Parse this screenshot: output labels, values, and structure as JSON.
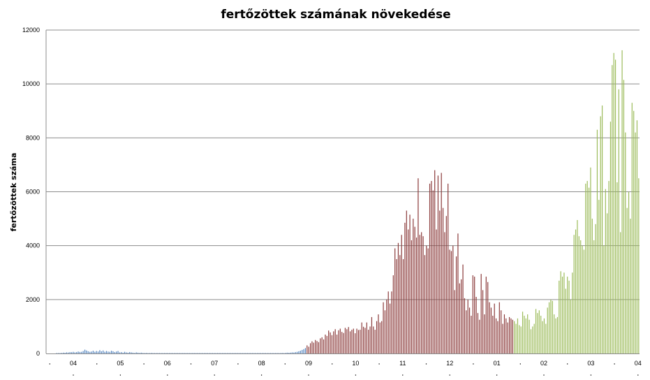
{
  "chart_data": {
    "type": "bar",
    "title": "fertőzöttek számának növekedése",
    "ylabel": "fertőzöttek száma",
    "xlabel": "",
    "ylim": [
      0,
      12000
    ],
    "yticks": [
      0,
      2000,
      4000,
      6000,
      8000,
      10000,
      12000
    ],
    "ytick_labels": [
      "0",
      "2000",
      "4000",
      "6000",
      "8000",
      "10000",
      "12000"
    ],
    "x_month_labels": [
      "04",
      "05",
      "06",
      "07",
      "08",
      "09",
      "10",
      "11",
      "12",
      "01",
      "02",
      "03",
      "04"
    ],
    "grid": true,
    "legend": "none",
    "colors": {
      "first_wave": "#4f81bd",
      "second_wave": "#8b3a3a",
      "third_wave": "#9bbb59"
    },
    "series": [
      {
        "color": "#4f81bd",
        "values": [
          10,
          15,
          12,
          20,
          30,
          25,
          40,
          35,
          50,
          45,
          60,
          40,
          50,
          70,
          55,
          60,
          90,
          140,
          110,
          80,
          60,
          70,
          100,
          60,
          90,
          70,
          120,
          80,
          110,
          60,
          90,
          70,
          60,
          100,
          80,
          50,
          70,
          90,
          40,
          50,
          30,
          60,
          40,
          30,
          50,
          40,
          30,
          20,
          40,
          30,
          20,
          30,
          20,
          10,
          20,
          15,
          10,
          20,
          10,
          15,
          10,
          10,
          10,
          5,
          5,
          8,
          5,
          10,
          5,
          5,
          5,
          8,
          5,
          5,
          5,
          5,
          5,
          5,
          5,
          5,
          5,
          5,
          5,
          5,
          5,
          5,
          5,
          5,
          5,
          5,
          5,
          5,
          5,
          5,
          5,
          5,
          5,
          5,
          5,
          5,
          5,
          5,
          5,
          5,
          5,
          5,
          5,
          5,
          5,
          5,
          5,
          5,
          5,
          5,
          5,
          5,
          5,
          5,
          5,
          5,
          5,
          5,
          5,
          5,
          5,
          5,
          5,
          5,
          5,
          10,
          10,
          5,
          10,
          15,
          10,
          10,
          20,
          15,
          20,
          30,
          25,
          30,
          40,
          35,
          50,
          60,
          80,
          100,
          130,
          160,
          200
        ]
      },
      {
        "color": "#8b3a3a",
        "values": [
          300,
          250,
          380,
          450,
          400,
          500,
          460,
          420,
          560,
          600,
          520,
          700,
          650,
          850,
          780,
          680,
          820,
          900,
          700,
          860,
          920,
          800,
          760,
          950,
          900,
          980,
          820,
          880,
          920,
          750,
          920,
          870,
          880,
          1150,
          990,
          950,
          1150,
          880,
          1000,
          1350,
          1000,
          880,
          1200,
          1450,
          1150,
          1200,
          1900,
          1600,
          2000,
          2300,
          1850,
          2300,
          2900,
          3900,
          3500,
          4100,
          3650,
          4400,
          3500,
          4850,
          5300,
          4600,
          5150,
          4200,
          5000,
          4700,
          4300,
          6500,
          4400,
          4500,
          4350,
          3650,
          4000,
          3900,
          6300,
          6400,
          6050,
          6800,
          4600,
          6600,
          5300,
          6700,
          5400,
          4500,
          5100,
          6300,
          3850,
          3800,
          4000,
          2350,
          3600,
          4450,
          2600,
          2750,
          3300,
          2050,
          1600,
          2000,
          1700,
          1400,
          2900,
          2850,
          2100,
          1500,
          1250,
          2950,
          2350,
          1450,
          2850,
          2650,
          1900,
          1700,
          1400,
          1850,
          1300,
          1200,
          1900,
          1600,
          1100,
          1450,
          1300,
          1150,
          1350,
          1300,
          1250
        ]
      },
      {
        "color": "#9bbb59",
        "values": [
          1200,
          1100,
          1300,
          1050,
          1000,
          1550,
          1400,
          1300,
          1450,
          1250,
          900,
          1000,
          1100,
          1650,
          1500,
          1600,
          1400,
          1200,
          1300,
          1100,
          1700,
          1900,
          2000,
          1950,
          1450,
          1300,
          1350,
          2700,
          3050,
          2850,
          3000,
          2400,
          2850,
          2700,
          2000,
          3000,
          4400,
          4600,
          4950,
          4350,
          4200,
          4000,
          3850,
          6300,
          6400,
          6150,
          6900,
          5000,
          4200,
          4800,
          8300,
          5700,
          8800,
          9200,
          4000,
          6100,
          5200,
          6400,
          8600,
          10700,
          11150,
          10900,
          6350,
          9800,
          4500,
          11250,
          10150,
          8200,
          5400,
          6000,
          5000,
          9300,
          9000,
          8200,
          8650,
          6500
        ]
      }
    ]
  }
}
